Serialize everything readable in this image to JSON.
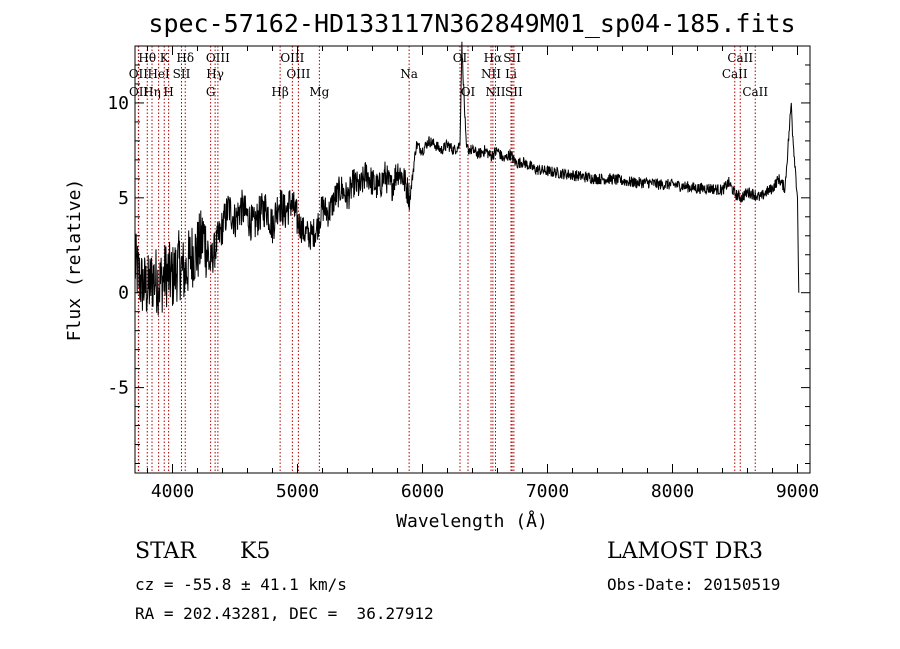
{
  "chart_data": {
    "type": "line",
    "title": "spec-57162-HD133117N362849M01_sp04-185.fits",
    "xlabel": "Wavelength (Å)",
    "ylabel": "Flux (relative)",
    "xlim": [
      3700,
      9100
    ],
    "ylim": [
      -9.5,
      13
    ],
    "xticks": [
      4000,
      5000,
      6000,
      7000,
      8000,
      9000
    ],
    "yticks": [
      -5,
      0,
      5,
      10
    ],
    "series": [
      {
        "name": "flux",
        "x": [
          3700,
          3750,
          3800,
          3850,
          3900,
          3950,
          4000,
          4050,
          4100,
          4150,
          4200,
          4250,
          4300,
          4350,
          4400,
          4450,
          4500,
          4550,
          4600,
          4650,
          4700,
          4750,
          4800,
          4850,
          4900,
          4950,
          5000,
          5050,
          5100,
          5150,
          5200,
          5250,
          5300,
          5350,
          5400,
          5450,
          5500,
          5550,
          5600,
          5650,
          5700,
          5750,
          5800,
          5850,
          5900,
          5950,
          6000,
          6050,
          6100,
          6150,
          6200,
          6250,
          6300,
          6315,
          6350,
          6400,
          6450,
          6500,
          6550,
          6600,
          6650,
          6700,
          6750,
          6800,
          6900,
          7000,
          7100,
          7200,
          7300,
          7400,
          7500,
          7600,
          7700,
          7800,
          7900,
          8000,
          8100,
          8200,
          8300,
          8400,
          8450,
          8500,
          8550,
          8600,
          8650,
          8700,
          8750,
          8800,
          8850,
          8900,
          8950,
          8960,
          9000,
          9010
        ],
        "values": [
          1.5,
          0.5,
          0.2,
          0.8,
          0.5,
          1.0,
          0.8,
          1.5,
          1.0,
          2.0,
          2.2,
          3.0,
          1.5,
          2.5,
          3.5,
          4.5,
          3.8,
          4.5,
          4.0,
          3.5,
          4.2,
          4.5,
          3.5,
          4.8,
          4.2,
          4.8,
          3.8,
          3.2,
          3.0,
          3.3,
          4.5,
          4.2,
          5.0,
          5.5,
          5.0,
          5.8,
          5.5,
          6.3,
          5.8,
          5.5,
          6.2,
          5.5,
          6.5,
          6.0,
          5.0,
          7.8,
          7.5,
          8.0,
          7.8,
          7.5,
          7.8,
          7.5,
          7.8,
          13.0,
          7.6,
          7.5,
          7.3,
          7.5,
          7.2,
          7.5,
          7.0,
          7.3,
          6.8,
          6.9,
          6.5,
          6.4,
          6.3,
          6.2,
          6.1,
          6.0,
          6.0,
          5.9,
          5.8,
          5.8,
          5.7,
          5.7,
          5.6,
          5.5,
          5.5,
          5.4,
          5.8,
          5.2,
          5.0,
          5.3,
          5.2,
          5.0,
          5.3,
          5.5,
          6.0,
          5.5,
          10.0,
          8.5,
          5.0,
          0.0
        ]
      }
    ],
    "spectral_lines": [
      {
        "label": "Hθ",
        "x": 3798,
        "row": 0
      },
      {
        "label": "OII",
        "x": 3727,
        "row": 1
      },
      {
        "label": "OII",
        "x": 3729,
        "row": 2
      },
      {
        "label": "Hη",
        "x": 3836,
        "row": 2
      },
      {
        "label": "HeI",
        "x": 3889,
        "row": 1
      },
      {
        "label": "K",
        "x": 3934,
        "row": 0
      },
      {
        "label": "H",
        "x": 3969,
        "row": 2
      },
      {
        "label": "SII",
        "x": 4072,
        "row": 1
      },
      {
        "label": "Hδ",
        "x": 4102,
        "row": 0
      },
      {
        "label": "OIII",
        "x": 4363,
        "row": 0
      },
      {
        "label": "Hγ",
        "x": 4341,
        "row": 1
      },
      {
        "label": "G",
        "x": 4305,
        "row": 2
      },
      {
        "label": "Hβ",
        "x": 4861,
        "row": 2
      },
      {
        "label": "OIII",
        "x": 4959,
        "row": 0
      },
      {
        "label": "OIII",
        "x": 5007,
        "row": 1
      },
      {
        "label": "Mg",
        "x": 5175,
        "row": 2
      },
      {
        "label": "Na",
        "x": 5893,
        "row": 1
      },
      {
        "label": "OI",
        "x": 6300,
        "row": 0
      },
      {
        "label": "OI",
        "x": 6364,
        "row": 2
      },
      {
        "label": "Hα",
        "x": 6563,
        "row": 0
      },
      {
        "label": "NII",
        "x": 6548,
        "row": 1
      },
      {
        "label": "NII",
        "x": 6584,
        "row": 2
      },
      {
        "label": "SII",
        "x": 6717,
        "row": 0
      },
      {
        "label": "Li",
        "x": 6708,
        "row": 1
      },
      {
        "label": "SII",
        "x": 6731,
        "row": 2
      },
      {
        "label": "CaII",
        "x": 8542,
        "row": 0
      },
      {
        "label": "CaII",
        "x": 8498,
        "row": 1
      },
      {
        "label": "CaII",
        "x": 8662,
        "row": 2
      }
    ]
  },
  "info": {
    "object_type": "STAR",
    "subclass": "K5",
    "survey": "LAMOST DR3",
    "redshift": "cz = -55.8 ± 41.1 km/s",
    "obs_date": "Obs-Date: 20150519",
    "coords": "RA = 202.43281, DEC =  36.27912"
  }
}
